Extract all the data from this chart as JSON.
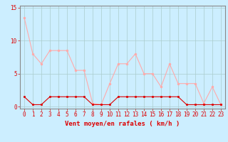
{
  "x": [
    0,
    1,
    2,
    3,
    4,
    5,
    6,
    7,
    8,
    9,
    10,
    11,
    12,
    13,
    14,
    15,
    16,
    17,
    18,
    19,
    20,
    21,
    22,
    23
  ],
  "y_rafales": [
    13.5,
    8.0,
    6.5,
    8.5,
    8.5,
    8.5,
    5.5,
    5.5,
    0.5,
    0.3,
    3.5,
    6.5,
    6.5,
    8.0,
    5.0,
    5.0,
    3.0,
    6.5,
    3.5,
    3.5,
    3.5,
    0.5,
    3.0,
    0.3
  ],
  "y_moyen": [
    1.5,
    0.3,
    0.3,
    1.5,
    1.5,
    1.5,
    1.5,
    1.5,
    0.3,
    0.3,
    0.3,
    1.5,
    1.5,
    1.5,
    1.5,
    1.5,
    1.5,
    1.5,
    1.5,
    0.3,
    0.3,
    0.3,
    0.3,
    0.3
  ],
  "color_rafales": "#ffaaaa",
  "color_moyen": "#dd0000",
  "background_color": "#cceeff",
  "grid_color": "#aacccc",
  "xlabel": "Vent moyen/en rafales ( km/h )",
  "ylim": [
    0,
    15
  ],
  "yticks": [
    0,
    5,
    10,
    15
  ],
  "xlim": [
    0,
    23
  ],
  "tick_fontsize": 5.5,
  "label_fontsize": 6.5
}
